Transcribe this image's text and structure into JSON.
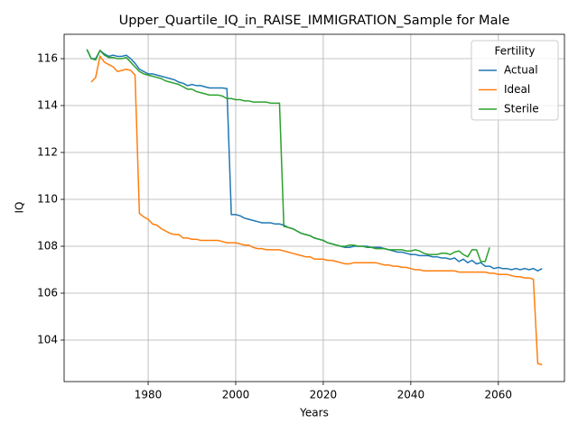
{
  "chart_data": {
    "type": "line",
    "title": "Upper_Quartile_IQ_in_RAISE_IMMIGRATION_Sample for Male",
    "xlabel": "Years",
    "ylabel": "IQ",
    "legend_title": "Fertility",
    "legend": "upper right",
    "grid": true,
    "xlim": [
      1960.8,
      2075.1
    ],
    "ylim": [
      102.23,
      117.04
    ],
    "xticks": [
      1980,
      2000,
      2020,
      2040,
      2060
    ],
    "yticks": [
      104,
      106,
      108,
      110,
      112,
      114,
      116
    ],
    "x": [
      1966,
      1967,
      1968,
      1969,
      1970,
      1971,
      1972,
      1973,
      1974,
      1975,
      1976,
      1977,
      1978,
      1979,
      1980,
      1981,
      1982,
      1983,
      1984,
      1985,
      1986,
      1987,
      1988,
      1989,
      1990,
      1991,
      1992,
      1993,
      1994,
      1995,
      1996,
      1997,
      1998,
      1999,
      2000,
      2001,
      2002,
      2003,
      2004,
      2005,
      2006,
      2007,
      2008,
      2009,
      2010,
      2011,
      2012,
      2013,
      2014,
      2015,
      2016,
      2017,
      2018,
      2019,
      2020,
      2021,
      2022,
      2023,
      2024,
      2025,
      2026,
      2027,
      2028,
      2029,
      2030,
      2031,
      2032,
      2033,
      2034,
      2035,
      2036,
      2037,
      2038,
      2039,
      2040,
      2041,
      2042,
      2043,
      2044,
      2045,
      2046,
      2047,
      2048,
      2049,
      2050,
      2051,
      2052,
      2053,
      2054,
      2055,
      2056,
      2057,
      2058,
      2059,
      2060,
      2061,
      2062,
      2063,
      2064,
      2065,
      2066,
      2067,
      2068,
      2069,
      2070
    ],
    "series": [
      {
        "name": "Actual",
        "color": "#1f77b4",
        "values": [
          116.4,
          116.0,
          116.0,
          116.35,
          116.2,
          116.1,
          116.15,
          116.1,
          116.1,
          116.15,
          116.0,
          115.8,
          115.55,
          115.45,
          115.35,
          115.35,
          115.3,
          115.25,
          115.2,
          115.15,
          115.1,
          115.0,
          114.95,
          114.85,
          114.9,
          114.85,
          114.85,
          114.8,
          114.75,
          114.75,
          114.75,
          114.75,
          114.72,
          109.35,
          109.35,
          109.3,
          109.2,
          109.15,
          109.1,
          109.05,
          109.0,
          109.0,
          109.0,
          108.95,
          108.95,
          108.9,
          108.8,
          108.75,
          108.65,
          108.55,
          108.5,
          108.45,
          108.35,
          108.3,
          108.25,
          108.15,
          108.1,
          108.05,
          108.0,
          107.95,
          107.95,
          108.0,
          108.0,
          108.0,
          108.0,
          107.95,
          107.95,
          107.95,
          107.9,
          107.85,
          107.8,
          107.75,
          107.75,
          107.7,
          107.65,
          107.65,
          107.6,
          107.6,
          107.6,
          107.55,
          107.55,
          107.5,
          107.5,
          107.45,
          107.5,
          107.35,
          107.45,
          107.3,
          107.4,
          107.25,
          107.3,
          107.15,
          107.15,
          107.05,
          107.1,
          107.05,
          107.05,
          107.0,
          107.05,
          107.0,
          107.05,
          107.0,
          107.05,
          106.95,
          107.05
        ]
      },
      {
        "name": "Ideal",
        "color": "#ff7f0e",
        "values": [
          null,
          115.0,
          115.2,
          116.1,
          115.85,
          115.75,
          115.65,
          115.45,
          115.5,
          115.55,
          115.5,
          115.3,
          109.4,
          109.25,
          109.15,
          108.95,
          108.9,
          108.75,
          108.65,
          108.55,
          108.5,
          108.5,
          108.35,
          108.35,
          108.3,
          108.3,
          108.25,
          108.25,
          108.25,
          108.25,
          108.25,
          108.2,
          108.15,
          108.15,
          108.15,
          108.1,
          108.05,
          108.05,
          107.95,
          107.9,
          107.9,
          107.85,
          107.85,
          107.85,
          107.85,
          107.8,
          107.75,
          107.7,
          107.65,
          107.6,
          107.55,
          107.55,
          107.45,
          107.45,
          107.45,
          107.4,
          107.4,
          107.35,
          107.3,
          107.25,
          107.25,
          107.3,
          107.3,
          107.3,
          107.3,
          107.3,
          107.3,
          107.25,
          107.2,
          107.2,
          107.15,
          107.15,
          107.1,
          107.1,
          107.05,
          107.0,
          107.0,
          106.95,
          106.95,
          106.95,
          106.95,
          106.95,
          106.95,
          106.95,
          106.95,
          106.9,
          106.9,
          106.9,
          106.9,
          106.9,
          106.9,
          106.9,
          106.85,
          106.85,
          106.8,
          106.8,
          106.8,
          106.75,
          106.7,
          106.7,
          106.65,
          106.65,
          106.6,
          103.0,
          102.95
        ]
      },
      {
        "name": "Sterile",
        "color": "#2ca02c",
        "values": [
          116.4,
          116.0,
          115.95,
          116.35,
          116.15,
          116.05,
          116.05,
          116.0,
          116.0,
          116.05,
          115.85,
          115.65,
          115.45,
          115.35,
          115.3,
          115.25,
          115.2,
          115.15,
          115.05,
          115.0,
          114.95,
          114.9,
          114.8,
          114.7,
          114.7,
          114.6,
          114.55,
          114.5,
          114.45,
          114.45,
          114.45,
          114.4,
          114.3,
          114.3,
          114.25,
          114.25,
          114.2,
          114.2,
          114.15,
          114.15,
          114.15,
          114.15,
          114.1,
          114.1,
          114.1,
          108.85,
          108.8,
          108.75,
          108.65,
          108.55,
          108.5,
          108.45,
          108.35,
          108.3,
          108.25,
          108.15,
          108.1,
          108.05,
          108.0,
          108.0,
          108.05,
          108.05,
          108.0,
          108.0,
          107.95,
          107.95,
          107.9,
          107.9,
          107.9,
          107.85,
          107.85,
          107.85,
          107.85,
          107.8,
          107.8,
          107.85,
          107.8,
          107.7,
          107.65,
          107.65,
          107.65,
          107.7,
          107.7,
          107.65,
          107.75,
          107.8,
          107.65,
          107.55,
          107.85,
          107.85,
          107.35,
          107.35,
          107.95,
          null,
          null,
          null,
          null,
          null,
          null,
          null,
          null,
          null,
          null,
          null,
          null
        ]
      }
    ]
  }
}
